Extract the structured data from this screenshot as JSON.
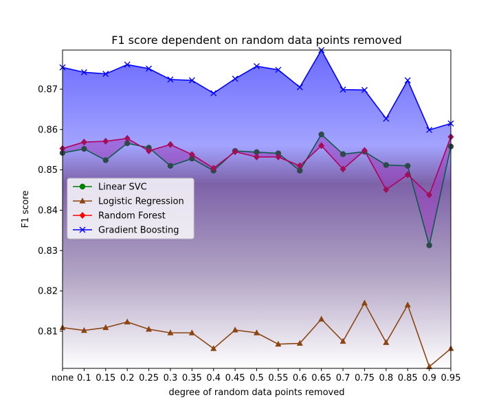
{
  "chart_data": {
    "type": "line",
    "title": "F1 score dependent on random data points removed",
    "xlabel": "degree of random data points removed",
    "ylabel": "F1 score",
    "categories": [
      "none",
      "0.1",
      "0.15",
      "0.2",
      "0.25",
      "0.3",
      "0.35",
      "0.4",
      "0.45",
      "0.5",
      "0.55",
      "0.6",
      "0.65",
      "0.7",
      "0.75",
      "0.8",
      "0.85",
      "0.9",
      "0.95"
    ],
    "ylim": [
      0.8008,
      0.8797
    ],
    "yticks": [
      "0.81",
      "0.82",
      "0.83",
      "0.84",
      "0.85",
      "0.86",
      "0.87"
    ],
    "grid": false,
    "legend_position": "center-left",
    "series": [
      {
        "name": "Linear SVC",
        "color": "#008000",
        "marker": "circle",
        "values": [
          0.8542,
          0.8552,
          0.8524,
          0.8566,
          0.8555,
          0.851,
          0.8528,
          0.8498,
          0.8547,
          0.8544,
          0.8541,
          0.8498,
          0.8588,
          0.8539,
          0.8545,
          0.8512,
          0.851,
          0.8313,
          0.8558
        ]
      },
      {
        "name": "Logistic Regression",
        "color": "#8b4513",
        "marker": "triangle",
        "values": [
          0.8109,
          0.8102,
          0.8109,
          0.8123,
          0.8105,
          0.8096,
          0.8096,
          0.8057,
          0.8103,
          0.8096,
          0.8068,
          0.807,
          0.813,
          0.8075,
          0.817,
          0.8072,
          0.8165,
          0.8012,
          0.8057
        ]
      },
      {
        "name": "Random Forest",
        "color": "#ff0000",
        "marker": "diamond",
        "values": [
          0.8553,
          0.8569,
          0.8571,
          0.8578,
          0.8547,
          0.8563,
          0.8538,
          0.8504,
          0.8545,
          0.8532,
          0.8532,
          0.851,
          0.856,
          0.8502,
          0.8548,
          0.8451,
          0.8488,
          0.8438,
          0.8582
        ]
      },
      {
        "name": "Gradient Boosting",
        "color": "#0000ff",
        "marker": "x",
        "values": [
          0.8754,
          0.8742,
          0.8738,
          0.8761,
          0.8751,
          0.8724,
          0.8722,
          0.869,
          0.8726,
          0.8757,
          0.8748,
          0.8705,
          0.8797,
          0.8699,
          0.8698,
          0.8627,
          0.8722,
          0.8599,
          0.8615
        ]
      }
    ]
  }
}
